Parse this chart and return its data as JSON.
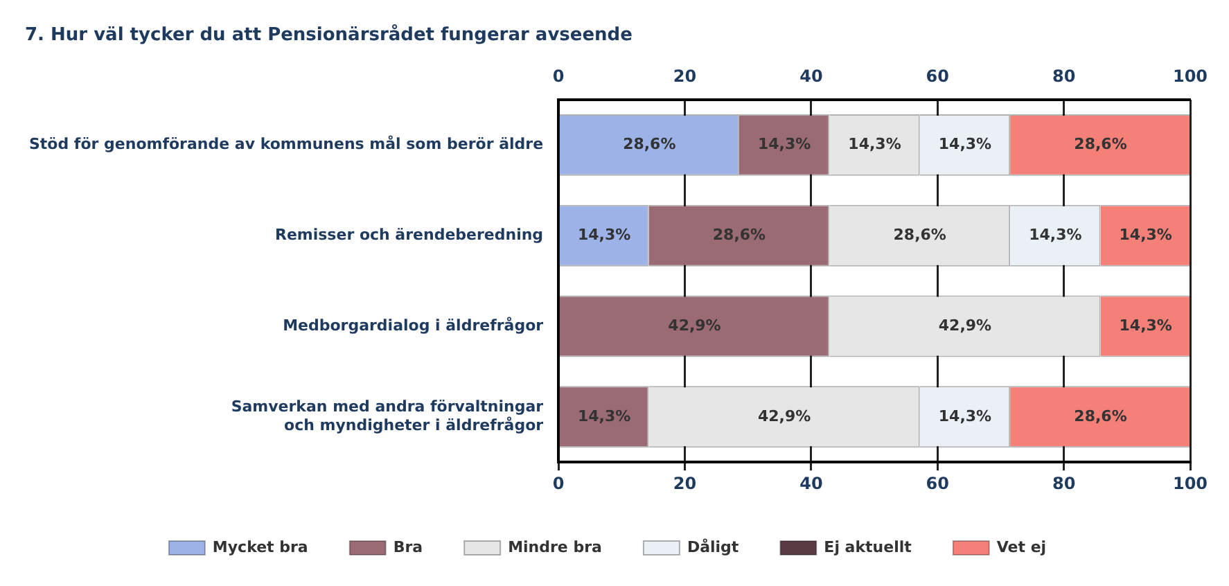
{
  "chart_data": {
    "type": "bar",
    "title": "7. Hur väl tycker du att Pensionärsrådet fungerar avseende",
    "orientation": "horizontal",
    "stacked": true,
    "categories": [
      "Stöd för genomförande av kommunens mål som berör äldre",
      "Remisser och ärendeberedning",
      "Medborgardialog i äldrefrågor",
      "Samverkan med andra förvaltningar\noch myndigheter i äldrefrågor"
    ],
    "series": [
      {
        "name": "Mycket bra",
        "color": "#9db3e8",
        "values": [
          28.6,
          14.3,
          null,
          null
        ],
        "value_labels": [
          "28,6%",
          "14,3%",
          null,
          null
        ]
      },
      {
        "name": "Bra",
        "color": "#9a6b74",
        "values": [
          14.3,
          28.6,
          42.9,
          14.3
        ],
        "value_labels": [
          "14,3%",
          "28,6%",
          "42,9%",
          "14,3%"
        ]
      },
      {
        "name": "Mindre bra",
        "color": "#e6e6e6",
        "values": [
          14.3,
          28.6,
          42.9,
          42.9
        ],
        "value_labels": [
          "14,3%",
          "28,6%",
          "42,9%",
          "42,9%"
        ]
      },
      {
        "name": "Dåligt",
        "color": "#eaf0f6",
        "values": [
          14.3,
          14.3,
          null,
          14.3
        ],
        "value_labels": [
          "14,3%",
          "14,3%",
          null,
          "14,3%"
        ]
      },
      {
        "name": "Ej aktuellt",
        "color": "#5a3b42",
        "values": [
          null,
          null,
          null,
          null
        ]
      },
      {
        "name": "Vet ej",
        "color": "#f58078",
        "values": [
          28.6,
          14.3,
          14.3,
          28.6
        ],
        "value_labels": [
          "28,6%",
          "14,3%",
          "14,3%",
          "28,6%"
        ]
      }
    ],
    "xlim": [
      0,
      100
    ],
    "xticks": [
      0,
      20,
      40,
      60,
      80,
      100
    ],
    "x2lim": [
      0,
      100
    ],
    "x2ticks": [
      0,
      20,
      40,
      60,
      80,
      100
    ],
    "grid": "x",
    "legend": "bottom"
  }
}
